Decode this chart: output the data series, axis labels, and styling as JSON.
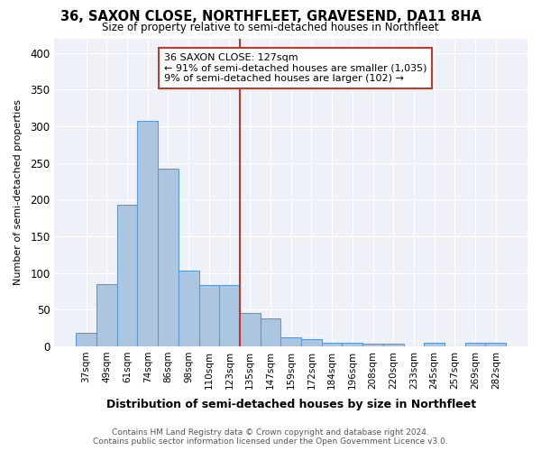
{
  "title": "36, SAXON CLOSE, NORTHFLEET, GRAVESEND, DA11 8HA",
  "subtitle": "Size of property relative to semi-detached houses in Northfleet",
  "xlabel": "Distribution of semi-detached houses by size in Northfleet",
  "ylabel": "Number of semi-detached properties",
  "footer_line1": "Contains HM Land Registry data © Crown copyright and database right 2024.",
  "footer_line2": "Contains public sector information licensed under the Open Government Licence v3.0.",
  "annotation_title": "36 SAXON CLOSE: 127sqm",
  "annotation_line1": "← 91% of semi-detached houses are smaller (1,035)",
  "annotation_line2": "9% of semi-detached houses are larger (102) →",
  "bar_color": "#adc6e0",
  "bar_edge_color": "#5b9bd5",
  "vline_color": "#c0392b",
  "annotation_box_color": "#c0392b",
  "background_color": "#ffffff",
  "plot_bg_color": "#eef2f8",
  "grid_color": "#ffffff",
  "categories": [
    "37sqm",
    "49sqm",
    "61sqm",
    "74sqm",
    "86sqm",
    "98sqm",
    "110sqm",
    "123sqm",
    "135sqm",
    "147sqm",
    "159sqm",
    "172sqm",
    "184sqm",
    "196sqm",
    "208sqm",
    "220sqm",
    "233sqm",
    "245sqm",
    "257sqm",
    "269sqm",
    "282sqm"
  ],
  "values": [
    18,
    85,
    193,
    308,
    242,
    103,
    83,
    83,
    45,
    38,
    12,
    10,
    5,
    5,
    3,
    3,
    0,
    5,
    0,
    5,
    5
  ],
  "vline_position": 7.5,
  "ylim": [
    0,
    420
  ],
  "yticks": [
    0,
    50,
    100,
    150,
    200,
    250,
    300,
    350,
    400
  ]
}
